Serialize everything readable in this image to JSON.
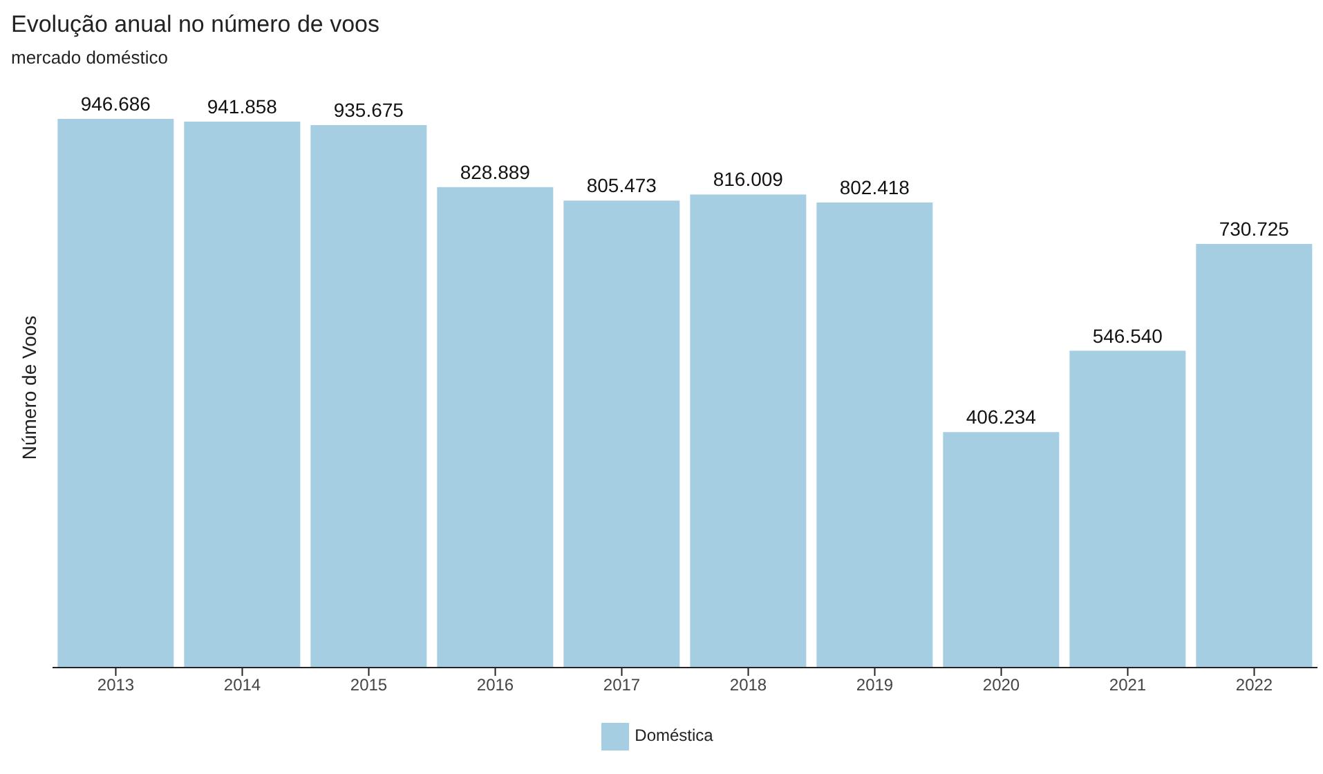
{
  "chart_data": {
    "type": "bar",
    "title": "Evolução anual no número de voos",
    "subtitle": "mercado doméstico",
    "ylabel": "Número de Voos",
    "categories": [
      "2013",
      "2014",
      "2015",
      "2016",
      "2017",
      "2018",
      "2019",
      "2020",
      "2021",
      "2022"
    ],
    "series": [
      {
        "name": "Doméstica",
        "color": "#a6cee3",
        "values": [
          946686,
          941858,
          935675,
          828889,
          805473,
          816009,
          802418,
          406234,
          546540,
          730725
        ],
        "value_labels": [
          "946.686",
          "941.858",
          "935.675",
          "828.889",
          "805.473",
          "816.009",
          "802.418",
          "406.234",
          "546.540",
          "730.725"
        ]
      }
    ],
    "legend": "bottom",
    "tick_labels": "x",
    "grid": false
  }
}
